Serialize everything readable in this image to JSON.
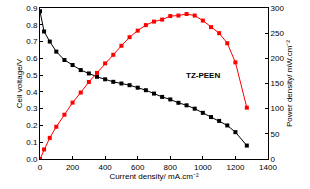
{
  "chart_data": {
    "type": "line",
    "x_label": "Current density/ mA.cm⁻²",
    "y_label": "Cell voltage/V",
    "y2_label": "Power density/ mW.cm⁻²",
    "annotations": [
      {
        "text": "TZ-PEEN"
      }
    ],
    "x": [
      0,
      25,
      60,
      100,
      150,
      200,
      250,
      300,
      350,
      400,
      450,
      500,
      550,
      600,
      650,
      700,
      750,
      800,
      850,
      900,
      950,
      1000,
      1050,
      1100,
      1150,
      1200,
      1270
    ],
    "marker": "square",
    "series": [
      {
        "name": "Cell voltage",
        "color": "#000000",
        "values": [
          0.88,
          0.76,
          0.7,
          0.64,
          0.59,
          0.56,
          0.53,
          0.51,
          0.49,
          0.475,
          0.46,
          0.45,
          0.44,
          0.425,
          0.41,
          0.39,
          0.37,
          0.355,
          0.335,
          0.32,
          0.3,
          0.275,
          0.25,
          0.227,
          0.2,
          0.16,
          0.08
        ]
      },
      {
        "name": "Power density",
        "color": "#ff0000",
        "axis": "y2",
        "values": [
          0,
          19,
          42,
          64,
          88,
          112,
          132,
          153,
          171,
          190,
          207,
          225,
          242,
          255,
          266,
          273,
          277,
          284,
          285,
          288,
          285,
          275,
          262,
          250,
          230,
          192,
          102
        ]
      }
    ],
    "xlim": [
      0,
      1400
    ],
    "xticks": [
      0,
      200,
      400,
      600,
      800,
      1000,
      1200,
      1400
    ],
    "ylim": [
      0,
      0.9
    ],
    "yticks": [
      {
        "value": 0,
        "label": "0.0"
      },
      0.1,
      0.2,
      0.3,
      0.4,
      0.5,
      0.6,
      0.7,
      0.8,
      0.9
    ],
    "y2lim": [
      0,
      300
    ],
    "y2ticks": [
      0,
      50,
      100,
      150,
      200,
      250,
      300
    ],
    "grid": false
  }
}
